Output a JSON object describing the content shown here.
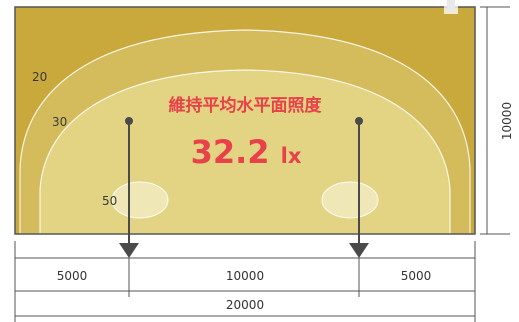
{
  "title": "維持平均水平面照度",
  "illuminance": {
    "value": "32.2",
    "unit": "lx"
  },
  "contours": [
    {
      "label": "20",
      "color": "#c9a83c"
    },
    {
      "label": "30",
      "color": "#d4bc5c"
    },
    {
      "label": "50",
      "color": "#e2d483"
    }
  ],
  "hotspot_color": "#f0e7b6",
  "dimensions": {
    "segments": [
      "5000",
      "10000",
      "5000"
    ],
    "total_width": "20000",
    "height": "10000"
  },
  "colors": {
    "accent": "#e8414a",
    "outer_zone": "#c9a83c",
    "frame": "#555555",
    "arrow": "#4a4a4a"
  }
}
